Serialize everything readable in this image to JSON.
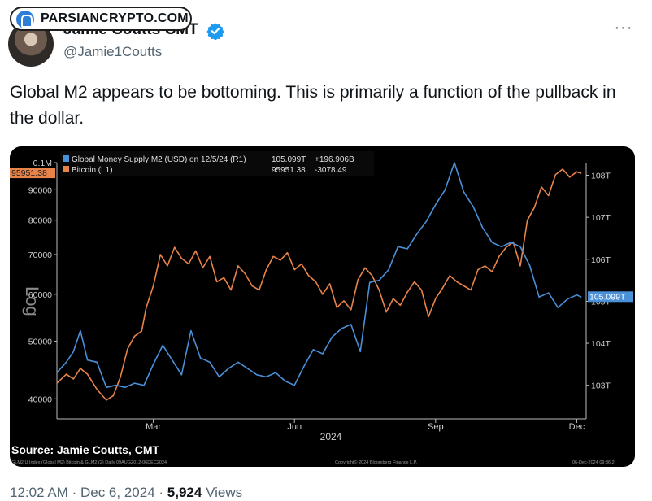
{
  "watermark": {
    "text": "PARSIANCRYPTO.COM"
  },
  "author": {
    "name": "Jamie Coutts CMT",
    "handle": "@Jamie1Coutts",
    "verified": true,
    "verified_color": "#1d9bf0"
  },
  "menu": {
    "more_label": "···"
  },
  "tweet": {
    "text": "Global M2 appears to be bottoming. This is primarily a function of the pullback in the dollar."
  },
  "meta": {
    "time": "12:02 AM",
    "date": "Dec 6, 2024",
    "separator": "·",
    "views_count": "5,924",
    "views_label": "Views"
  },
  "chart_data": {
    "type": "line",
    "legend": [
      {
        "name": "Global Money Supply M2 (USD) on 12/5/24 (R1)",
        "last": "105.099T",
        "change": "+196.906B",
        "color": "#4a90d9"
      },
      {
        "name": "Bitcoin (L1)",
        "last": "95951.38",
        "change": "-3078.49",
        "color": "#e8834a"
      }
    ],
    "left_axis": {
      "ticks": [
        "0.1M",
        "90000",
        "80000",
        "70000",
        "60000",
        "50000",
        "40000"
      ],
      "tick_values": [
        100000,
        90000,
        80000,
        70000,
        60000,
        50000,
        40000
      ],
      "range": [
        37000,
        100000
      ],
      "label": "Log",
      "scale": "log",
      "last_value_tag": "95951.38"
    },
    "right_axis": {
      "ticks": [
        "108T",
        "107T",
        "106T",
        "105T",
        "104T",
        "103T"
      ],
      "tick_values": [
        108,
        107,
        106,
        105,
        104,
        103
      ],
      "range": [
        102.2,
        108.3
      ],
      "last_value_tag": "105.099T"
    },
    "x_axis": {
      "ticks": [
        "Mar",
        "Jun",
        "Sep",
        "Dec"
      ],
      "tick_positions": [
        2.0,
        5.0,
        8.0,
        11.0
      ],
      "year_label": "2024",
      "range": [
        -0.05,
        11.2
      ]
    },
    "series": [
      {
        "name": "Bitcoin (L1)",
        "axis": "left",
        "color": "#e8834a",
        "x": [
          -0.05,
          0.15,
          0.3,
          0.45,
          0.6,
          0.8,
          1.0,
          1.15,
          1.3,
          1.45,
          1.6,
          1.75,
          1.85,
          2.0,
          2.15,
          2.3,
          2.45,
          2.6,
          2.75,
          2.9,
          3.05,
          3.2,
          3.35,
          3.5,
          3.65,
          3.8,
          3.95,
          4.1,
          4.25,
          4.4,
          4.55,
          4.7,
          4.85,
          5.0,
          5.15,
          5.3,
          5.45,
          5.6,
          5.75,
          5.9,
          6.05,
          6.2,
          6.35,
          6.5,
          6.65,
          6.8,
          6.95,
          7.1,
          7.25,
          7.4,
          7.55,
          7.7,
          7.85,
          8.0,
          8.15,
          8.3,
          8.45,
          8.6,
          8.75,
          8.9,
          9.05,
          9.2,
          9.35,
          9.5,
          9.65,
          9.8,
          9.95,
          10.1,
          10.25,
          10.4,
          10.55,
          10.7,
          10.85,
          11.0,
          11.1
        ],
        "y": [
          42500,
          44000,
          43200,
          45000,
          44000,
          41500,
          39800,
          40500,
          43500,
          48500,
          51000,
          52000,
          57000,
          62000,
          70000,
          67000,
          72000,
          69000,
          67500,
          71000,
          66500,
          69500,
          63000,
          64000,
          61000,
          67000,
          65000,
          62000,
          61000,
          66000,
          69500,
          68500,
          70500,
          66000,
          67500,
          64500,
          63000,
          60000,
          62500,
          57000,
          58500,
          56500,
          63500,
          66500,
          64500,
          61000,
          56000,
          59000,
          57500,
          60500,
          63000,
          61000,
          55000,
          59000,
          61500,
          64500,
          63000,
          62000,
          61000,
          66000,
          67000,
          65500,
          69500,
          72000,
          73500,
          67000,
          80000,
          84000,
          91000,
          88000,
          95500,
          97500,
          94500,
          96500,
          95951.38
        ]
      },
      {
        "name": "Global Money Supply M2 (USD) on 12/5/24 (R1)",
        "axis": "right",
        "color": "#4a90d9",
        "x": [
          -0.05,
          0.15,
          0.3,
          0.45,
          0.6,
          0.8,
          1.0,
          1.2,
          1.4,
          1.6,
          1.8,
          2.0,
          2.2,
          2.4,
          2.6,
          2.8,
          3.0,
          3.2,
          3.4,
          3.6,
          3.8,
          4.0,
          4.2,
          4.4,
          4.6,
          4.8,
          5.0,
          5.2,
          5.4,
          5.6,
          5.8,
          6.0,
          6.2,
          6.4,
          6.6,
          6.8,
          7.0,
          7.2,
          7.4,
          7.6,
          7.8,
          8.0,
          8.2,
          8.4,
          8.6,
          8.8,
          9.0,
          9.2,
          9.4,
          9.6,
          9.8,
          10.0,
          10.2,
          10.4,
          10.6,
          10.8,
          11.0,
          11.1
        ],
        "y": [
          103.3,
          103.55,
          103.8,
          104.3,
          103.6,
          103.55,
          102.95,
          103.0,
          102.95,
          103.05,
          103.0,
          103.5,
          103.95,
          103.6,
          103.25,
          104.3,
          103.65,
          103.55,
          103.2,
          103.4,
          103.55,
          103.4,
          103.25,
          103.2,
          103.3,
          103.1,
          103.0,
          103.45,
          103.85,
          103.75,
          104.15,
          104.35,
          104.45,
          103.8,
          105.45,
          105.5,
          105.75,
          106.3,
          106.25,
          106.6,
          106.9,
          107.3,
          107.65,
          108.3,
          107.6,
          107.25,
          106.75,
          106.4,
          106.3,
          106.4,
          106.3,
          105.85,
          105.1,
          105.2,
          104.85,
          105.05,
          105.15,
          105.099
        ]
      }
    ],
    "source": "Source: Jamie Coutts, CMT",
    "footer_left": "GLM2 U Index (Global M2) Bitcoin & GLM2 (2)  Daily 09AUG2012-06DEC2024",
    "footer_mid": "Copyright© 2024 Bloomberg Finance L.P.",
    "footer_right": "06-Dec-2024 09:36:2"
  }
}
